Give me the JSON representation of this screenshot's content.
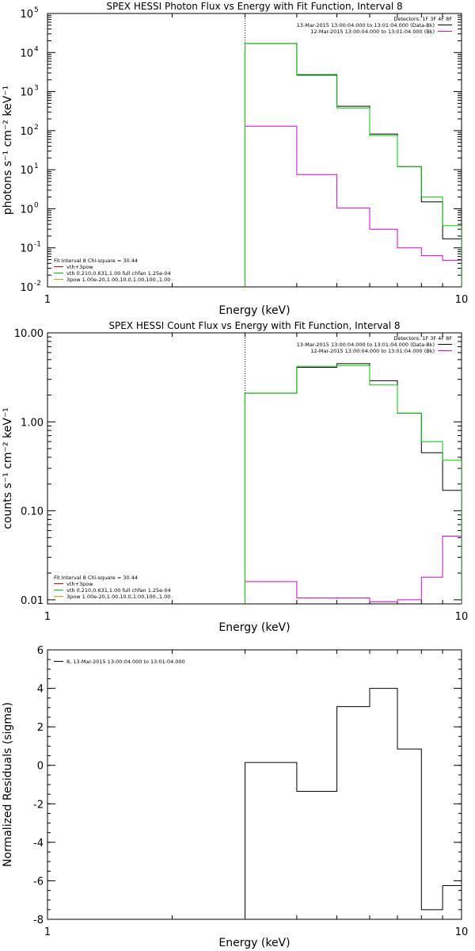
{
  "chart_data": [
    {
      "type": "line",
      "title": "SPEX HESSI Photon Flux vs Energy with Fit Function, Interval 8",
      "xlabel": "Energy (keV)",
      "ylabel": "photons s⁻¹ cm⁻² keV⁻¹",
      "xscale": "log",
      "yscale": "log",
      "xlim": [
        1,
        10
      ],
      "ylim": [
        0.01,
        100000
      ],
      "xticks": [
        "1",
        "10"
      ],
      "yticks": [
        {
          "v": 0.01,
          "b": "10",
          "e": "-2"
        },
        {
          "v": 0.1,
          "b": "10",
          "e": "-1"
        },
        {
          "v": 1,
          "b": "10",
          "e": "0"
        },
        {
          "v": 10,
          "b": "10",
          "e": "1"
        },
        {
          "v": 100,
          "b": "10",
          "e": "2"
        },
        {
          "v": 1000,
          "b": "10",
          "e": "3"
        },
        {
          "v": 10000,
          "b": "10",
          "e": "4"
        },
        {
          "v": 100000,
          "b": "10",
          "e": "5"
        }
      ],
      "energy_line": 3.0,
      "bin_edges": [
        3.0,
        4.0,
        5.0,
        6.0,
        7.0,
        8.0,
        9.0,
        10.0
      ],
      "series": [
        {
          "name": "13-Mar-2015 13:00:04.000 to 13:01:04.000 (Data-Bk)",
          "color": "#000000",
          "values": [
            17000,
            2700,
            420,
            82,
            12,
            1.5,
            0.17
          ]
        },
        {
          "name": "12-Mar-2015 13:00:04.000 to 13:01:04.000 (Bk)",
          "color": "#e000e0",
          "values": [
            130,
            7.5,
            1.05,
            0.3,
            0.1,
            0.063,
            0.048
          ]
        },
        {
          "name": "",
          "color": "#00cc00",
          "values": [
            17000,
            2600,
            380,
            75,
            12,
            2.0,
            0.37
          ]
        }
      ],
      "legend_right": {
        "header": "Detectors: 1F 3F 4F 8F",
        "items": [
          {
            "text": "13-Mar-2015 13:00:04.000 to 13:01:04.000 (Data-Bk)",
            "color": "#000000"
          },
          {
            "text": "12-Mar-2015 13:00:04.000 to 13:01:04.000 (Bk)",
            "color": "#e000e0"
          }
        ]
      },
      "legend_left": {
        "header": "Fit Interval 8   Chi-square = 30.44",
        "items": [
          {
            "text": "vth+3pow",
            "color": "#e00000"
          },
          {
            "text": "vth 0.210,0.631,1.00  full chfan 1.25e-04",
            "color": "#00cc00"
          },
          {
            "text": "3pow 1.00e-20,1.00,10.0,1.00,100.,1.00",
            "color": "#e0a000"
          }
        ]
      }
    },
    {
      "type": "line",
      "title": "SPEX HESSI Count Flux vs Energy with Fit Function, Interval 8",
      "xlabel": "Energy (keV)",
      "ylabel": "counts s⁻¹ cm⁻² keV⁻¹",
      "xscale": "log",
      "yscale": "log",
      "xlim": [
        1,
        10
      ],
      "ylim": [
        0.009,
        10
      ],
      "xticks": [
        "1",
        "10"
      ],
      "yticks": [
        {
          "v": 0.01,
          "t": "0.01"
        },
        {
          "v": 0.1,
          "t": "0.10"
        },
        {
          "v": 1,
          "t": "1.00"
        },
        {
          "v": 10,
          "t": "10.00"
        }
      ],
      "energy_line": 3.0,
      "bin_edges": [
        3.0,
        4.0,
        5.0,
        6.0,
        7.0,
        8.0,
        9.0,
        10.0
      ],
      "series": [
        {
          "name": "13-Mar-2015 13:00:04.000 to 13:01:04.000 (Data-Bk)",
          "color": "#000000",
          "values": [
            2.1,
            4.1,
            4.5,
            2.9,
            1.25,
            0.45,
            0.17
          ]
        },
        {
          "name": "12-Mar-2015 13:00:04.000 to 13:01:04.000 (Bk)",
          "color": "#e000e0",
          "values": [
            0.016,
            0.0105,
            0.0105,
            0.0095,
            0.01,
            0.018,
            0.052
          ]
        },
        {
          "name": "",
          "color": "#00cc00",
          "values": [
            2.1,
            4.2,
            4.3,
            2.6,
            1.25,
            0.6,
            0.37
          ]
        }
      ],
      "legend_right": {
        "header": "Detectors: 1F 3F 4F 8F",
        "items": [
          {
            "text": "13-Mar-2015 13:00:04.000 to 13:01:04.000 (Data-Bk)",
            "color": "#000000"
          },
          {
            "text": "12-Mar-2015 13:00:04.000 to 13:01:04.000 (Bk)",
            "color": "#e000e0"
          }
        ]
      },
      "legend_left": {
        "header": "Fit Interval 8   Chi-square = 30.44",
        "items": [
          {
            "text": "vth+3pow",
            "color": "#e00000"
          },
          {
            "text": "vth 0.210,0.631,1.00  full chfan 1.25e-04",
            "color": "#00cc00"
          },
          {
            "text": "3pow 1.00e-20,1.00,10.0,1.00,100.,1.00",
            "color": "#e0a000"
          }
        ]
      }
    },
    {
      "type": "line",
      "title": "",
      "xlabel": "Energy (keV)",
      "ylabel": "Normalized Residuals (sigma)",
      "xscale": "log",
      "yscale": "linear",
      "xlim": [
        1,
        10
      ],
      "ylim": [
        -8,
        6
      ],
      "xticks": [
        "1",
        "10"
      ],
      "yticks": [
        {
          "v": -8,
          "t": "-8"
        },
        {
          "v": -6,
          "t": "-6"
        },
        {
          "v": -4,
          "t": "-4"
        },
        {
          "v": -2,
          "t": "-2"
        },
        {
          "v": 0,
          "t": "0"
        },
        {
          "v": 2,
          "t": "2"
        },
        {
          "v": 4,
          "t": "4"
        },
        {
          "v": 6,
          "t": "6"
        }
      ],
      "bin_edges": [
        3.0,
        4.0,
        5.0,
        6.0,
        7.0,
        8.0,
        9.0,
        10.0
      ],
      "series": [
        {
          "name": "8, 13-Mar-2015 13:00:04.000 to 13:01:04.000",
          "color": "#000000",
          "values": [
            0.15,
            -1.35,
            3.05,
            4.0,
            0.85,
            -7.5,
            -6.25
          ]
        }
      ],
      "legend_left": {
        "header": "",
        "items": [
          {
            "text": "8, 13-Mar-2015 13:00:04.000 to 13:01:04.000",
            "color": "#000000"
          }
        ]
      }
    }
  ]
}
